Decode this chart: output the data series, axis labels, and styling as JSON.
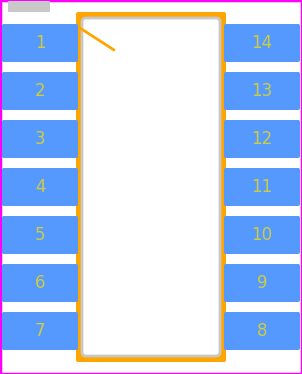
{
  "background_color": "#ffffff",
  "border_color": "#ff00ff",
  "border_linewidth": 2.5,
  "body_outer_color": "#ffa500",
  "body_inner_color": "#c8c8c8",
  "body_fill_color": "#ffffff",
  "pin1_marker_color": "#c8c8c8",
  "pin1_diagonal_color": "#ffa500",
  "pin1_diagonal_linewidth": 2.0,
  "left_pins": [
    1,
    2,
    3,
    4,
    5,
    6,
    7
  ],
  "right_pins": [
    14,
    13,
    12,
    11,
    10,
    9,
    8
  ],
  "pin_color": "#5599ff",
  "pin_text_color": "#cccc44",
  "figsize": [
    3.02,
    3.74
  ],
  "dpi": 100
}
